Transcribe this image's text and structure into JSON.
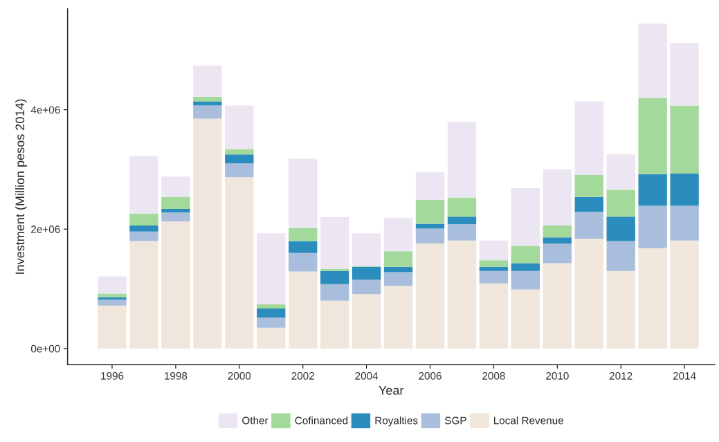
{
  "chart_data": {
    "type": "bar",
    "stacked": true,
    "xlabel": "Year",
    "ylabel": "Investment (Million pesos 2014)",
    "x": [
      1996,
      1997,
      1998,
      1999,
      2000,
      2001,
      2002,
      2003,
      2004,
      2005,
      2006,
      2007,
      2008,
      2009,
      2010,
      2011,
      2012,
      2013,
      2014
    ],
    "series": [
      {
        "name": "Local Revenue",
        "color": "#f0e6db",
        "values": [
          720000,
          1800000,
          2130000,
          3850000,
          2870000,
          350000,
          1290000,
          800000,
          910000,
          1050000,
          1760000,
          1810000,
          1090000,
          990000,
          1430000,
          1840000,
          1300000,
          1680000,
          1810000
        ]
      },
      {
        "name": "SGP",
        "color": "#a8bedc",
        "values": [
          100000,
          160000,
          150000,
          220000,
          230000,
          170000,
          310000,
          280000,
          240000,
          230000,
          250000,
          270000,
          210000,
          310000,
          330000,
          450000,
          500000,
          710000,
          580000
        ]
      },
      {
        "name": "Royalties",
        "color": "#2b8cbe",
        "values": [
          40000,
          100000,
          60000,
          70000,
          150000,
          150000,
          200000,
          220000,
          220000,
          90000,
          80000,
          130000,
          70000,
          130000,
          100000,
          250000,
          410000,
          530000,
          540000
        ]
      },
      {
        "name": "Cofinanced",
        "color": "#a3d99a",
        "values": [
          60000,
          200000,
          200000,
          80000,
          90000,
          70000,
          220000,
          30000,
          10000,
          260000,
          400000,
          320000,
          110000,
          290000,
          200000,
          370000,
          450000,
          1280000,
          1140000
        ]
      },
      {
        "name": "Other",
        "color": "#ebe6f2",
        "values": [
          290000,
          960000,
          340000,
          520000,
          730000,
          1190000,
          1160000,
          870000,
          550000,
          560000,
          470000,
          1270000,
          330000,
          970000,
          940000,
          1230000,
          590000,
          1240000,
          1050000
        ]
      }
    ],
    "xlim": [
      1994.6,
      2014.95
    ],
    "xticks": [
      1996,
      1998,
      2000,
      2002,
      2004,
      2006,
      2008,
      2010,
      2012,
      2014
    ],
    "ylim": [
      -270000,
      5690000
    ],
    "yticks": [
      {
        "value": 0,
        "label": "0e+00"
      },
      {
        "value": 2000000,
        "label": "2e+06"
      },
      {
        "value": 4000000,
        "label": "4e+06"
      }
    ],
    "grid": false,
    "legend": "bottom"
  }
}
